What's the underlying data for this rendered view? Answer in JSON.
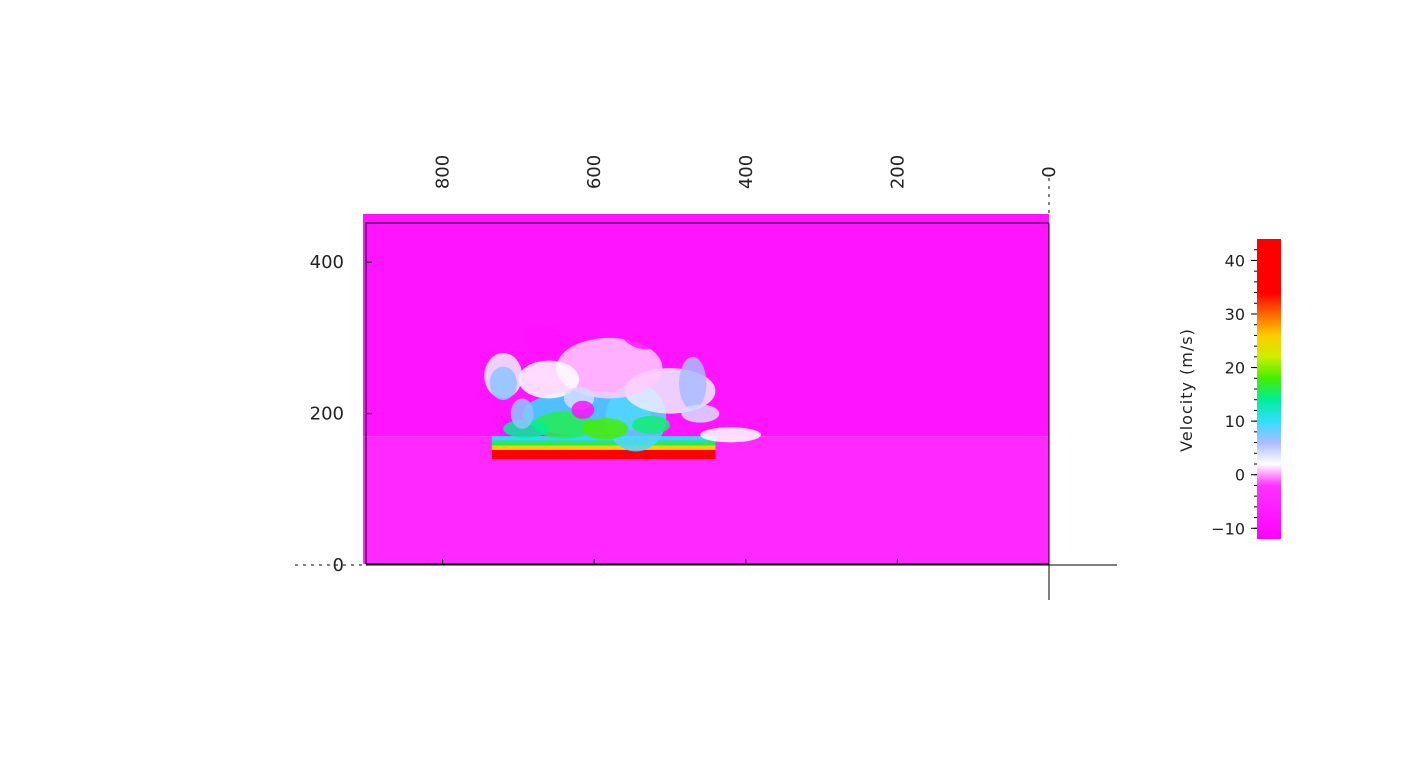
{
  "chart_data": {
    "type": "heatmap",
    "title": "",
    "colorbar": {
      "label": "Velocity (m/s)",
      "range": [
        -12,
        44
      ],
      "ticks": [
        40,
        30,
        20,
        10,
        0,
        -10
      ],
      "tick_labels": [
        "40",
        "30",
        "20",
        "10",
        "0",
        "−10"
      ],
      "colors": {
        "-12": "#ff00ff",
        "-2": "#ff33ff",
        "2": "#ffffff",
        "6": "#aabbff",
        "10": "#33ddff",
        "14": "#00ee99",
        "18": "#44ee00",
        "22": "#ccee00",
        "26": "#ffcc00",
        "30": "#ff6600",
        "34": "#ff0000",
        "44": "#ff0000"
      }
    },
    "x_axis": {
      "label": "",
      "reversed": true,
      "range": [
        900,
        0
      ],
      "ticks": [
        800,
        600,
        400,
        200,
        0
      ],
      "tick_labels": [
        "800",
        "600",
        "400",
        "200",
        "0"
      ]
    },
    "y_axis": {
      "label": "",
      "range": [
        0,
        450
      ],
      "ticks": [
        400,
        200,
        0
      ],
      "tick_labels": [
        "400",
        "200",
        "0"
      ]
    },
    "regions": {
      "upper_background_velocity": -8,
      "lower_background_velocity": -4,
      "interface_y": 170
    },
    "hot_layer": {
      "x_range": [
        735,
        440
      ],
      "y_bands": [
        {
          "y": [
            140,
            152
          ],
          "velocity": 36
        },
        {
          "y": [
            152,
            158
          ],
          "velocity": 26
        },
        {
          "y": [
            158,
            164
          ],
          "velocity": 16
        },
        {
          "y": [
            164,
            170
          ],
          "velocity": 11
        }
      ]
    },
    "plume_blobs": [
      {
        "x": 610,
        "y": 200,
        "rx": 85,
        "ry": 30,
        "velocity": 10
      },
      {
        "x": 545,
        "y": 195,
        "rx": 40,
        "ry": 45,
        "velocity": 9
      },
      {
        "x": 640,
        "y": 185,
        "rx": 40,
        "ry": 18,
        "velocity": 16
      },
      {
        "x": 585,
        "y": 180,
        "rx": 30,
        "ry": 14,
        "velocity": 18
      },
      {
        "x": 525,
        "y": 185,
        "rx": 25,
        "ry": 12,
        "velocity": 15
      },
      {
        "x": 690,
        "y": 180,
        "rx": 30,
        "ry": 12,
        "velocity": 14
      },
      {
        "x": 500,
        "y": 230,
        "rx": 60,
        "ry": 30,
        "velocity": 3
      },
      {
        "x": 580,
        "y": 260,
        "rx": 70,
        "ry": 40,
        "velocity": 1
      },
      {
        "x": 660,
        "y": 245,
        "rx": 40,
        "ry": 25,
        "velocity": 2
      },
      {
        "x": 720,
        "y": 250,
        "rx": 25,
        "ry": 30,
        "velocity": 3
      },
      {
        "x": 720,
        "y": 240,
        "rx": 18,
        "ry": 22,
        "velocity": 7
      },
      {
        "x": 470,
        "y": 240,
        "rx": 18,
        "ry": 35,
        "velocity": 6
      },
      {
        "x": 460,
        "y": 200,
        "rx": 25,
        "ry": 12,
        "velocity": 4
      },
      {
        "x": 420,
        "y": 172,
        "rx": 40,
        "ry": 10,
        "velocity": 2
      },
      {
        "x": 695,
        "y": 200,
        "rx": 15,
        "ry": 20,
        "velocity": 7
      },
      {
        "x": 620,
        "y": 220,
        "rx": 20,
        "ry": 15,
        "velocity": 4
      },
      {
        "x": 665,
        "y": 295,
        "rx": 25,
        "ry": 20,
        "velocity": -9
      },
      {
        "x": 530,
        "y": 310,
        "rx": 35,
        "ry": 25,
        "velocity": -8
      },
      {
        "x": 615,
        "y": 205,
        "rx": 15,
        "ry": 12,
        "velocity": -9
      }
    ]
  }
}
